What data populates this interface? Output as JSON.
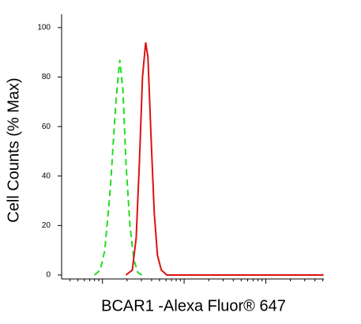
{
  "chart_data": {
    "type": "line",
    "xlabel": "BCAR1 -Alexa Fluor® 647",
    "ylabel": "Cell Counts (% Max)",
    "xlog": true,
    "xlim": [
      31.6,
      51500
    ],
    "xticks": [
      100,
      1000,
      10000
    ],
    "xminorticks": [
      40,
      50,
      60,
      70,
      80,
      90,
      200,
      300,
      400,
      500,
      600,
      700,
      800,
      900,
      2000,
      3000,
      4000,
      5000,
      6000,
      7000,
      8000,
      9000,
      20000,
      30000,
      40000,
      50000
    ],
    "ylim": [
      -1.6,
      105.4
    ],
    "yticks": [
      0,
      20,
      40,
      60,
      80,
      100
    ],
    "series": [
      {
        "color": "#22dd22",
        "dash": true,
        "x": [
          80,
          94,
          107,
          125,
          146,
          163,
          178,
          194,
          217,
          243,
          271,
          303
        ],
        "values": [
          0,
          2,
          10,
          35,
          70,
          87,
          75,
          45,
          20,
          6,
          1,
          0
        ]
      },
      {
        "color": "#dd1111",
        "dash": false,
        "x": [
          194,
          232,
          259,
          283,
          309,
          338,
          361,
          394,
          431,
          471,
          526,
          614,
          4315,
          51000
        ],
        "values": [
          0,
          2,
          15,
          45,
          80,
          94,
          88,
          55,
          25,
          8,
          2,
          0,
          0,
          0
        ]
      }
    ]
  }
}
